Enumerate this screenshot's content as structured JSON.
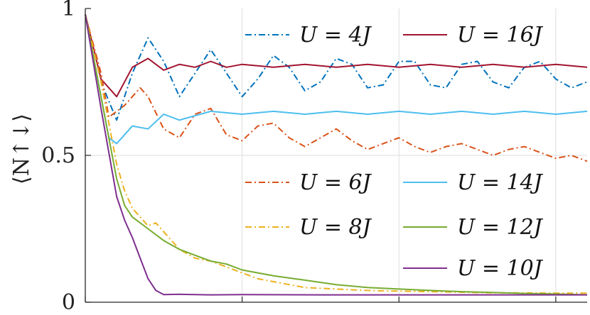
{
  "chart_data": {
    "type": "line",
    "xlim": [
      0,
      3.2
    ],
    "ylim": [
      0,
      1
    ],
    "xticks": [
      0,
      1,
      2,
      3
    ],
    "yticks": [
      {
        "value": 0,
        "label": "0"
      },
      {
        "value": 0.5,
        "label": "0.5"
      },
      {
        "value": 1,
        "label": "1"
      }
    ],
    "ylabel": "⟨N↑↓⟩",
    "grid": true,
    "legend_position": "inside, two columns",
    "series": [
      {
        "name": "U = 4J",
        "legend_label": "U = 4J",
        "color": "#0072BD",
        "dash": "dashdot",
        "x": [
          0,
          0.1,
          0.2,
          0.3,
          0.4,
          0.5,
          0.6,
          0.7,
          0.8,
          0.9,
          1.0,
          1.1,
          1.2,
          1.3,
          1.4,
          1.5,
          1.6,
          1.7,
          1.8,
          1.9,
          2.0,
          2.1,
          2.2,
          2.3,
          2.4,
          2.5,
          2.6,
          2.7,
          2.8,
          2.9,
          3.0,
          3.1,
          3.2
        ],
        "y": [
          0.98,
          0.75,
          0.62,
          0.78,
          0.9,
          0.82,
          0.7,
          0.78,
          0.86,
          0.78,
          0.7,
          0.76,
          0.84,
          0.8,
          0.72,
          0.75,
          0.83,
          0.81,
          0.73,
          0.74,
          0.82,
          0.82,
          0.74,
          0.73,
          0.81,
          0.82,
          0.75,
          0.73,
          0.8,
          0.82,
          0.76,
          0.73,
          0.75
        ]
      },
      {
        "name": "U = 16J",
        "legend_label": "U = 16J",
        "color": "#A2142F",
        "dash": "solid",
        "x": [
          0,
          0.1,
          0.2,
          0.3,
          0.4,
          0.5,
          0.6,
          0.7,
          0.8,
          0.9,
          1.0,
          1.2,
          1.4,
          1.6,
          1.8,
          2.0,
          2.2,
          2.4,
          2.6,
          2.8,
          3.0,
          3.2
        ],
        "y": [
          0.98,
          0.76,
          0.7,
          0.8,
          0.83,
          0.79,
          0.81,
          0.8,
          0.82,
          0.8,
          0.81,
          0.8,
          0.81,
          0.8,
          0.81,
          0.8,
          0.81,
          0.8,
          0.81,
          0.8,
          0.81,
          0.8
        ]
      },
      {
        "name": "U = 6J",
        "legend_label": "U = 6J",
        "color": "#D95319",
        "dash": "dashdot",
        "x": [
          0,
          0.1,
          0.15,
          0.25,
          0.35,
          0.4,
          0.5,
          0.6,
          0.7,
          0.8,
          0.9,
          1.0,
          1.1,
          1.2,
          1.3,
          1.4,
          1.5,
          1.6,
          1.7,
          1.8,
          1.9,
          2.0,
          2.1,
          2.2,
          2.3,
          2.4,
          2.5,
          2.6,
          2.7,
          2.8,
          2.9,
          3.0,
          3.1,
          3.2
        ],
        "y": [
          0.98,
          0.78,
          0.63,
          0.67,
          0.73,
          0.7,
          0.59,
          0.56,
          0.64,
          0.66,
          0.57,
          0.55,
          0.6,
          0.61,
          0.56,
          0.53,
          0.56,
          0.59,
          0.55,
          0.52,
          0.54,
          0.56,
          0.53,
          0.51,
          0.53,
          0.54,
          0.52,
          0.5,
          0.52,
          0.53,
          0.51,
          0.49,
          0.5,
          0.48
        ]
      },
      {
        "name": "U = 14J",
        "legend_label": "U = 14J",
        "color": "#4DBEEE",
        "dash": "solid",
        "x": [
          0,
          0.1,
          0.15,
          0.2,
          0.3,
          0.4,
          0.5,
          0.6,
          0.8,
          1.0,
          1.2,
          1.4,
          1.6,
          1.8,
          2.0,
          2.2,
          2.4,
          2.6,
          2.8,
          3.0,
          3.2
        ],
        "y": [
          0.98,
          0.7,
          0.56,
          0.54,
          0.6,
          0.59,
          0.64,
          0.62,
          0.65,
          0.64,
          0.65,
          0.64,
          0.65,
          0.64,
          0.65,
          0.64,
          0.65,
          0.64,
          0.65,
          0.64,
          0.65
        ]
      },
      {
        "name": "U = 8J",
        "legend_label": "U = 8J",
        "color": "#EDB120",
        "dash": "dashdot",
        "x": [
          0,
          0.1,
          0.2,
          0.25,
          0.3,
          0.4,
          0.45,
          0.5,
          0.6,
          0.7,
          0.8,
          0.9,
          1.0,
          1.1,
          1.2,
          1.3,
          1.4,
          1.6,
          1.8,
          2.0,
          2.2,
          2.4,
          2.6,
          2.8,
          3.0,
          3.2
        ],
        "y": [
          0.98,
          0.75,
          0.47,
          0.38,
          0.32,
          0.26,
          0.27,
          0.24,
          0.18,
          0.15,
          0.14,
          0.12,
          0.1,
          0.08,
          0.07,
          0.06,
          0.05,
          0.045,
          0.04,
          0.038,
          0.036,
          0.034,
          0.032,
          0.032,
          0.031,
          0.031
        ]
      },
      {
        "name": "U = 12J",
        "legend_label": "U = 12J",
        "color": "#77AC30",
        "dash": "solid",
        "x": [
          0,
          0.1,
          0.2,
          0.25,
          0.3,
          0.4,
          0.45,
          0.5,
          0.6,
          0.7,
          0.8,
          0.9,
          1.0,
          1.1,
          1.2,
          1.4,
          1.6,
          1.8,
          2.0,
          2.2,
          2.4,
          2.6,
          2.8,
          3.0,
          3.2
        ],
        "y": [
          0.98,
          0.7,
          0.42,
          0.33,
          0.29,
          0.25,
          0.23,
          0.21,
          0.18,
          0.16,
          0.14,
          0.13,
          0.11,
          0.1,
          0.09,
          0.075,
          0.06,
          0.05,
          0.045,
          0.04,
          0.036,
          0.033,
          0.03,
          0.028,
          0.025
        ]
      },
      {
        "name": "U = 10J",
        "legend_label": "U = 10J",
        "color": "#7E2F8E",
        "dash": "solid",
        "x": [
          0,
          0.1,
          0.2,
          0.25,
          0.3,
          0.35,
          0.4,
          0.45,
          0.5,
          0.6,
          0.8,
          1.0,
          1.5,
          2.0,
          2.5,
          3.0,
          3.2
        ],
        "y": [
          0.98,
          0.66,
          0.36,
          0.28,
          0.22,
          0.15,
          0.08,
          0.04,
          0.026,
          0.027,
          0.025,
          0.026,
          0.025,
          0.025,
          0.025,
          0.025,
          0.025
        ]
      }
    ]
  }
}
